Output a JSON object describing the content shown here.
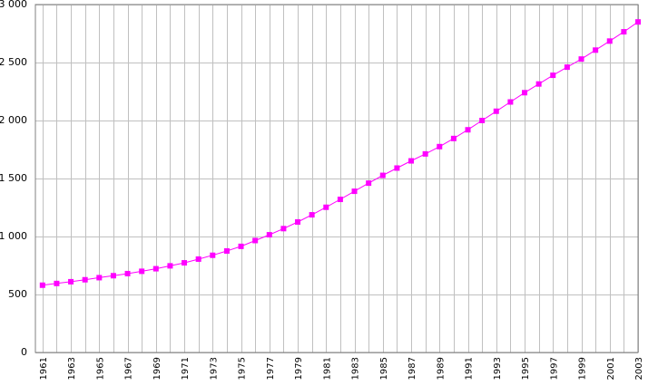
{
  "chart_data": {
    "type": "line",
    "title": "",
    "xlabel": "",
    "ylabel": "",
    "x": [
      1961,
      1962,
      1963,
      1964,
      1965,
      1966,
      1967,
      1968,
      1969,
      1970,
      1971,
      1972,
      1973,
      1974,
      1975,
      1976,
      1977,
      1978,
      1979,
      1980,
      1981,
      1982,
      1983,
      1984,
      1985,
      1986,
      1987,
      1988,
      1989,
      1990,
      1991,
      1992,
      1993,
      1994,
      1995,
      1996,
      1997,
      1998,
      1999,
      2000,
      2001,
      2002,
      2003
    ],
    "series": [
      {
        "values": [
          580,
          595,
          610,
          627,
          645,
          662,
          680,
          700,
          722,
          747,
          773,
          805,
          838,
          875,
          915,
          965,
          1015,
          1068,
          1125,
          1187,
          1252,
          1320,
          1390,
          1460,
          1527,
          1590,
          1652,
          1712,
          1775,
          1845,
          1920,
          2000,
          2080,
          2160,
          2240,
          2315,
          2390,
          2460,
          2530,
          2607,
          2685,
          2765,
          2850
        ],
        "color": "#ff00ff"
      }
    ],
    "xlim": [
      1960.5,
      2003
    ],
    "ylim": [
      0,
      3000
    ],
    "y_ticks": [
      0,
      500,
      1000,
      1500,
      2000,
      2500,
      3000
    ],
    "y_tick_labels": [
      "0",
      "500",
      "1 000",
      "1 500",
      "2 000",
      "2 500",
      "3 000"
    ],
    "x_tick_labels": [
      "1961",
      "1963",
      "1965",
      "1967",
      "1969",
      "1971",
      "1973",
      "1975",
      "1977",
      "1979",
      "1981",
      "1983",
      "1985",
      "1987",
      "1989",
      "1991",
      "1993",
      "1995",
      "1997",
      "1999",
      "2001",
      "2003"
    ],
    "grid": true,
    "legend": "none",
    "colors": {
      "series": "#ff00ff",
      "grid": "#c0c0c0",
      "axis": "#808080"
    }
  }
}
